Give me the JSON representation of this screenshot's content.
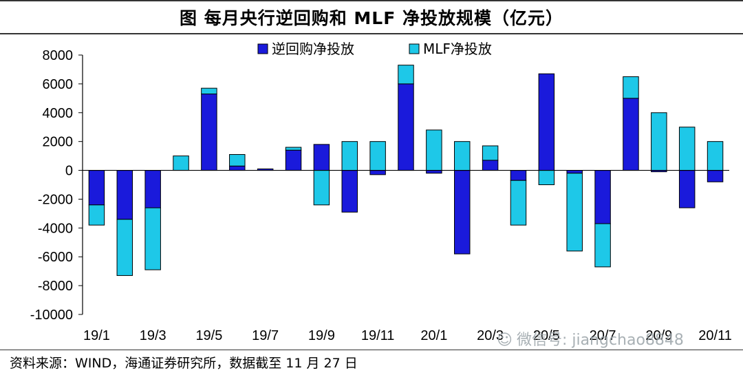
{
  "title": "图 每月央行逆回购和 MLF 净投放规模（亿元）",
  "source": "资料来源：WIND，海通证券研究所，数据截至 11 月 27 日",
  "watermark": "微信号: jiangchao8848",
  "chart_data": {
    "type": "bar",
    "stacked": true,
    "categories": [
      "19/1",
      "19/2",
      "19/3",
      "19/4",
      "19/5",
      "19/6",
      "19/7",
      "19/8",
      "19/9",
      "19/10",
      "19/11",
      "19/12",
      "20/1",
      "20/2",
      "20/3",
      "20/4",
      "20/5",
      "20/6",
      "20/7",
      "20/8",
      "20/9",
      "20/10",
      "20/11"
    ],
    "x_tick_labels": [
      "19/1",
      "19/3",
      "19/5",
      "19/7",
      "19/9",
      "19/11",
      "20/1",
      "20/3",
      "20/5",
      "20/7",
      "20/9",
      "20/11"
    ],
    "series": [
      {
        "name": "逆回购净投放",
        "color": "#1a1adb",
        "values": [
          -2400,
          -3400,
          -2600,
          0,
          5300,
          300,
          100,
          1400,
          1800,
          -2900,
          -300,
          6000,
          -200,
          -5800,
          700,
          -700,
          6700,
          -200,
          -3700,
          5000,
          -100,
          -2600,
          -800
        ]
      },
      {
        "name": "MLF净投放",
        "color": "#1ec8e8",
        "values": [
          -1400,
          -3900,
          -4300,
          1000,
          400,
          800,
          0,
          200,
          -2400,
          2000,
          2000,
          1300,
          2800,
          2000,
          1000,
          -3100,
          -1000,
          -5400,
          -3000,
          1500,
          4000,
          3000,
          2000
        ]
      }
    ],
    "ylim": [
      -10000,
      8000
    ],
    "yticks": [
      -10000,
      -8000,
      -6000,
      -4000,
      -2000,
      0,
      2000,
      4000,
      6000,
      8000
    ],
    "legend_position": "top-center",
    "grid": false
  }
}
